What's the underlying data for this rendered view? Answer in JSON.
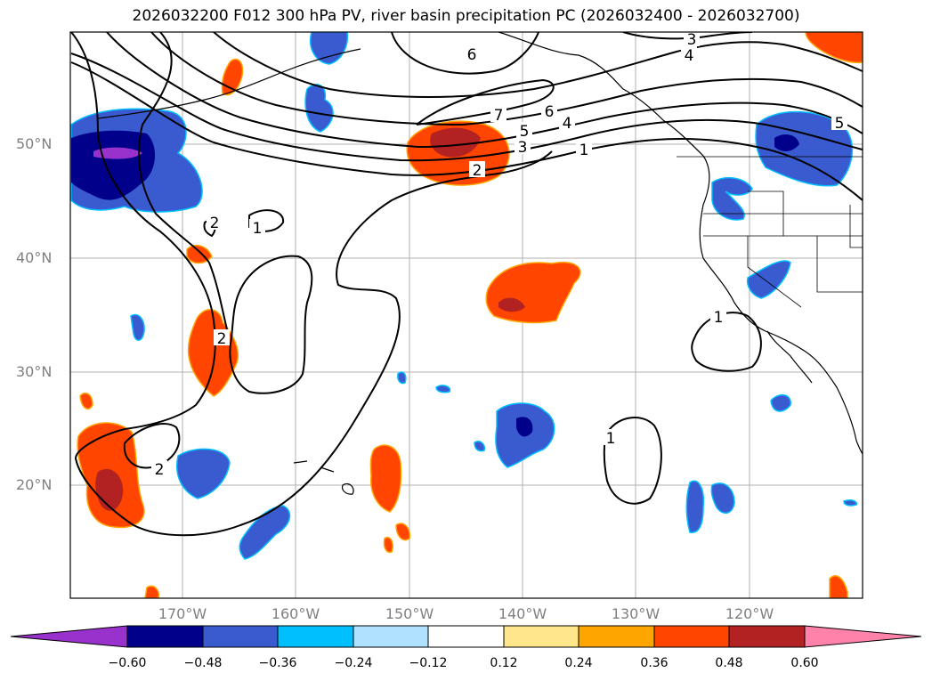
{
  "title": "2026032200 F012 300 hPa PV, river basin precipitation PC (2026032400 - 2026032700)",
  "lat_labels": [
    "50°N",
    "40°N",
    "30°N",
    "20°N"
  ],
  "lon_labels": [
    "170°W",
    "160°W",
    "150°W",
    "140°W",
    "130°W",
    "120°W"
  ],
  "contour_labels": [
    "6",
    "3",
    "4",
    "7",
    "6",
    "5",
    "4",
    "3",
    "1",
    "2",
    "5",
    "2",
    "1",
    "2",
    "1",
    "2",
    "1"
  ],
  "colorbar": {
    "ticks": [
      "−0.60",
      "−0.48",
      "−0.36",
      "−0.24",
      "−0.12",
      "0.12",
      "0.24",
      "0.36",
      "0.48",
      "0.60"
    ],
    "colors": [
      "#9932cc",
      "#00008b",
      "#3a5bd0",
      "#00bfff",
      "#b0e2ff",
      "#ffffff",
      "#ffe68a",
      "#ffa500",
      "#ff4500",
      "#b22222",
      "#ff82ab"
    ]
  }
}
